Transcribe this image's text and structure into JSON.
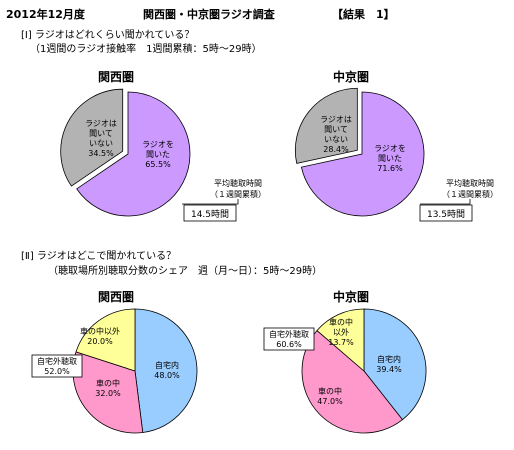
{
  "header": {
    "date": "2012年12月度",
    "title": "関西圏・中京圏ラジオ調査",
    "result": "【結果　1】"
  },
  "section1": {
    "title": "[Ⅰ] ラジオはどれくらい聞かれている？",
    "subtitle": "（1週間のラジオ接触率　1週間累積：5時～29時）"
  },
  "section2": {
    "title": "[Ⅱ] ラジオはどこで聞かれている？",
    "subtitle": "（聴取場所別聴取分数のシェア　週（月～日）：5時～29時）"
  },
  "avg_label": [
    "平均聴取時間",
    "（１週間累積）"
  ],
  "colors": {
    "listened": "#cc99ff",
    "not_listened": "#b3b3b3",
    "home": "#99ccff",
    "car": "#ff99cc",
    "other": "#ffff99"
  },
  "chart_data": [
    {
      "type": "pie",
      "region": "関西圏",
      "slices": [
        {
          "label": [
            "ラジオを",
            "聞いた",
            "65.5%"
          ],
          "value": 65.5,
          "color": "#cc99ff"
        },
        {
          "label": [
            "ラジオは",
            "聞いて",
            "いない",
            "34.5%"
          ],
          "value": 34.5,
          "color": "#b3b3b3"
        }
      ],
      "avg_time": "14.5時間"
    },
    {
      "type": "pie",
      "region": "中京圏",
      "slices": [
        {
          "label": [
            "ラジオを",
            "聞いた",
            "71.6%"
          ],
          "value": 71.6,
          "color": "#cc99ff"
        },
        {
          "label": [
            "ラジオは",
            "聞いて",
            "いない",
            "28.4%"
          ],
          "value": 28.4,
          "color": "#b3b3b3"
        }
      ],
      "avg_time": "13.5時間"
    },
    {
      "type": "pie",
      "region": "関西圏",
      "slices": [
        {
          "label": [
            "自宅内",
            "48.0%"
          ],
          "value": 48.0,
          "color": "#99ccff"
        },
        {
          "label": [
            "車の中",
            "32.0%"
          ],
          "value": 32.0,
          "color": "#ff99cc"
        },
        {
          "label": [
            "車の中以外",
            "20.0%"
          ],
          "value": 20.0,
          "color": "#ffff99"
        }
      ],
      "callout": [
        "自宅外聴取",
        "52.0%"
      ]
    },
    {
      "type": "pie",
      "region": "中京圏",
      "slices": [
        {
          "label": [
            "自宅内",
            "39.4%"
          ],
          "value": 39.4,
          "color": "#99ccff"
        },
        {
          "label": [
            "車の中",
            "47.0%"
          ],
          "value": 47.0,
          "color": "#ff99cc"
        },
        {
          "label": [
            "車の中",
            "以外",
            "13.7%"
          ],
          "value": 13.7,
          "color": "#ffff99"
        }
      ],
      "callout": [
        "自宅外聴取",
        "60.6%"
      ]
    }
  ]
}
